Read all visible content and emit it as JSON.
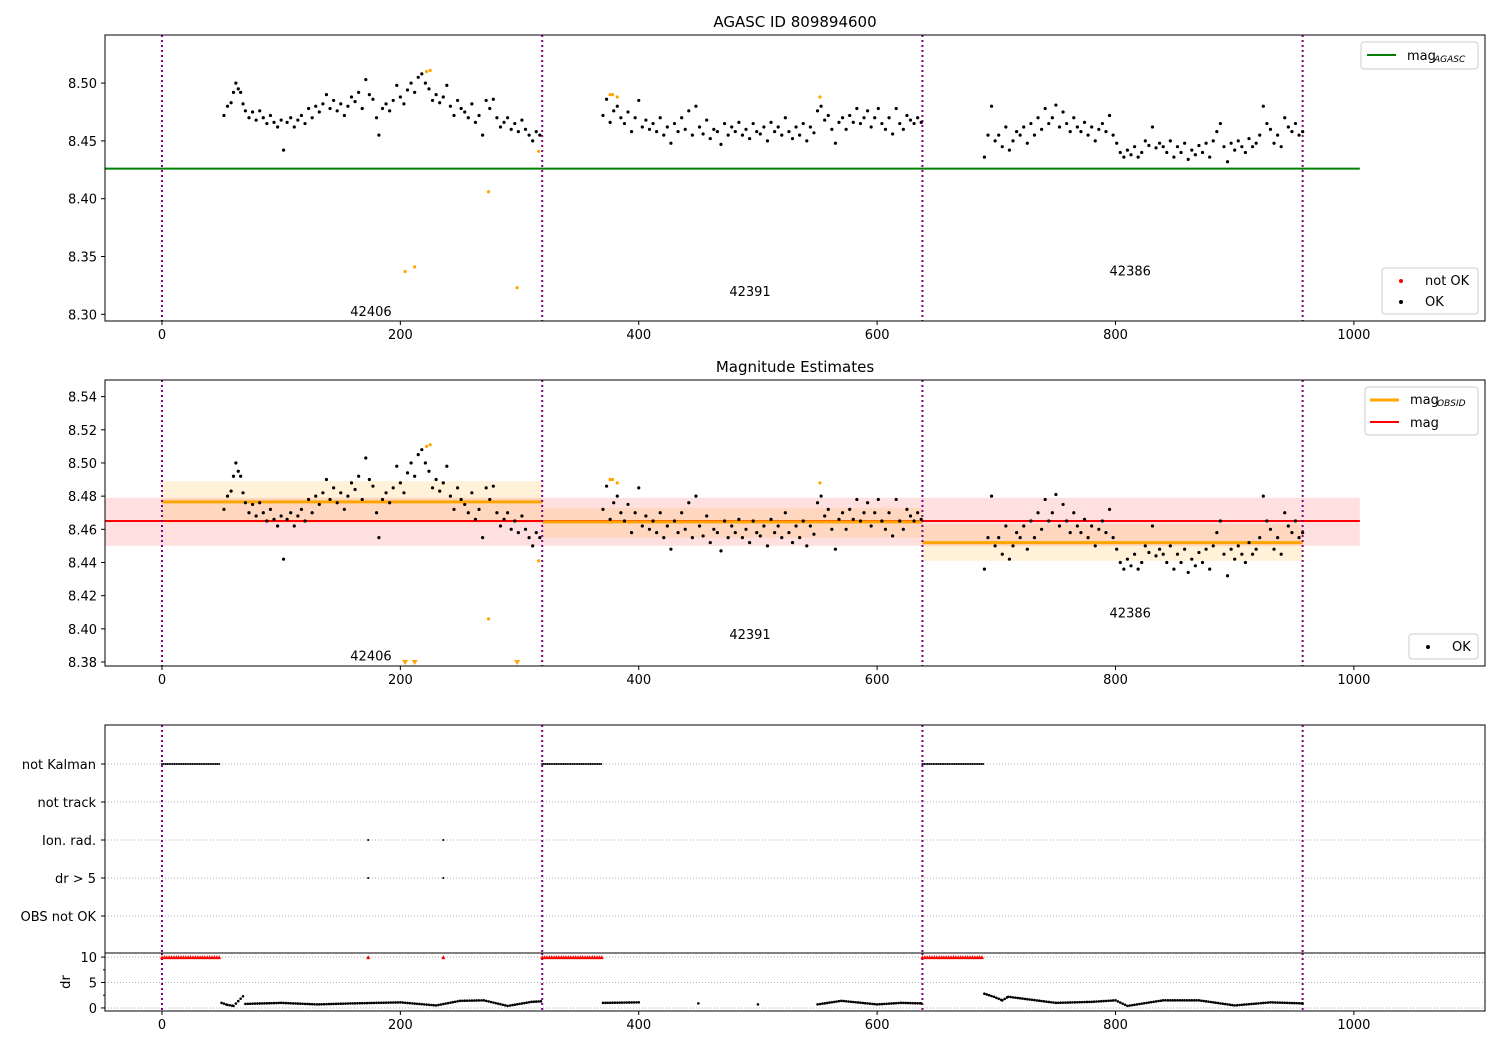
{
  "chart_data": {
    "type": "scatter",
    "title": "AGASC ID 809894600",
    "xlim": [
      -47.8,
      1110
    ],
    "xticks": [
      0,
      200,
      400,
      600,
      800,
      1000
    ],
    "obsid_boundaries": [
      0,
      319,
      638,
      957
    ],
    "obsids": [
      {
        "id": "42406",
        "label_x": 158,
        "label_y_top": 8.303,
        "label_y_mid": 8.384,
        "mag": 8.4765,
        "band": [
          8.464,
          8.489
        ],
        "x": [
          0,
          319
        ]
      },
      {
        "id": "42391",
        "label_x": 476,
        "label_y_top": 8.32,
        "label_y_mid": 8.397,
        "mag": 8.4645,
        "band": [
          8.455,
          8.473
        ],
        "x": [
          319,
          638
        ]
      },
      {
        "id": "42386",
        "label_x": 795,
        "label_y_top": 8.338,
        "label_y_mid": 8.41,
        "mag": 8.452,
        "band": [
          8.441,
          8.463
        ],
        "x": [
          638,
          957
        ]
      }
    ],
    "panels": [
      {
        "title": "AGASC ID 809894600",
        "ylim": [
          8.2942,
          8.5416
        ],
        "yticks": [
          "8.30",
          "8.35",
          "8.40",
          "8.45",
          "8.50"
        ],
        "mag_agasc": 8.426,
        "legend_top": {
          "label": "mag",
          "sub": "AGASC"
        },
        "legend_bottom": [
          "not OK",
          "OK"
        ]
      },
      {
        "title": "Magnitude Estimates",
        "ylim": [
          8.3776,
          8.55
        ],
        "yticks": [
          "8.38",
          "8.40",
          "8.42",
          "8.44",
          "8.46",
          "8.48",
          "8.50",
          "8.52",
          "8.54"
        ],
        "mag": 8.465,
        "mag_band": [
          8.45,
          8.479
        ],
        "legend_top": [
          {
            "label": "mag",
            "sub": "OBSID"
          },
          {
            "label": "mag",
            "sub": ""
          }
        ],
        "legend_bottom": [
          "OK"
        ]
      },
      {
        "categories": [
          "not Kalman",
          "not track",
          "Ion. rad.",
          "dr > 5",
          "OBS not OK"
        ],
        "flags": {
          "not Kalman": [
            [
              0,
              48
            ],
            [
              319,
              369
            ],
            [
              638,
              689
            ]
          ],
          "not track": [],
          "Ion. rad.": [
            [
              173,
              173
            ],
            [
              236,
              236
            ]
          ],
          "dr > 5": [
            [
              173,
              173
            ],
            [
              236,
              236
            ]
          ],
          "OBS not OK": []
        }
      },
      {
        "ylabel": "dr",
        "ylim": [
          -0.6,
          10.8
        ],
        "yticks": [
          "0",
          "5",
          "10"
        ],
        "dr_over_10": [
          [
            0,
            48
          ],
          [
            319,
            369
          ],
          [
            638,
            689
          ],
          [
            173,
            173
          ],
          [
            236,
            236
          ]
        ],
        "dr": [
          [
            50,
            1.0
          ],
          [
            55,
            0.6
          ],
          [
            60,
            0.4
          ],
          [
            68,
            2.3
          ],
          [
            70,
            0.8
          ],
          [
            100,
            1.0
          ],
          [
            130,
            0.7
          ],
          [
            160,
            0.9
          ],
          [
            200,
            1.1
          ],
          [
            230,
            0.5
          ],
          [
            250,
            1.4
          ],
          [
            270,
            1.5
          ],
          [
            290,
            0.4
          ],
          [
            310,
            1.2
          ],
          [
            318,
            1.3
          ],
          [
            370,
            1.0
          ],
          [
            400,
            1.1
          ],
          [
            450,
            0.9
          ],
          [
            500,
            0.7
          ],
          [
            550,
            0.7
          ],
          [
            570,
            1.4
          ],
          [
            600,
            0.7
          ],
          [
            620,
            1.0
          ],
          [
            637,
            0.9
          ],
          [
            690,
            2.8
          ],
          [
            698,
            2.2
          ],
          [
            705,
            1.5
          ],
          [
            710,
            2.2
          ],
          [
            750,
            1.0
          ],
          [
            780,
            1.2
          ],
          [
            800,
            1.5
          ],
          [
            810,
            0.4
          ],
          [
            840,
            1.5
          ],
          [
            870,
            1.5
          ],
          [
            900,
            0.5
          ],
          [
            930,
            1.1
          ],
          [
            957,
            0.9
          ]
        ]
      }
    ],
    "not_ok": [
      [
        204,
        8.337
      ],
      [
        212,
        8.341
      ],
      [
        222,
        8.51
      ],
      [
        225,
        8.511
      ],
      [
        274,
        8.406
      ],
      [
        298,
        8.323
      ],
      [
        316,
        8.441
      ],
      [
        376,
        8.49
      ],
      [
        378,
        8.49
      ],
      [
        382,
        8.488
      ],
      [
        552,
        8.488
      ]
    ],
    "ok": [
      [
        52,
        8.472
      ],
      [
        55,
        8.48
      ],
      [
        58,
        8.483
      ],
      [
        60,
        8.492
      ],
      [
        62,
        8.5
      ],
      [
        64,
        8.495
      ],
      [
        66,
        8.492
      ],
      [
        68,
        8.482
      ],
      [
        70,
        8.476
      ],
      [
        73,
        8.47
      ],
      [
        76,
        8.475
      ],
      [
        79,
        8.468
      ],
      [
        82,
        8.476
      ],
      [
        85,
        8.47
      ],
      [
        88,
        8.465
      ],
      [
        91,
        8.472
      ],
      [
        94,
        8.466
      ],
      [
        97,
        8.462
      ],
      [
        100,
        8.468
      ],
      [
        102,
        8.442
      ],
      [
        105,
        8.466
      ],
      [
        108,
        8.47
      ],
      [
        111,
        8.462
      ],
      [
        114,
        8.468
      ],
      [
        117,
        8.472
      ],
      [
        120,
        8.465
      ],
      [
        123,
        8.478
      ],
      [
        126,
        8.47
      ],
      [
        129,
        8.48
      ],
      [
        132,
        8.475
      ],
      [
        135,
        8.482
      ],
      [
        138,
        8.49
      ],
      [
        141,
        8.478
      ],
      [
        144,
        8.485
      ],
      [
        147,
        8.476
      ],
      [
        150,
        8.482
      ],
      [
        153,
        8.472
      ],
      [
        156,
        8.48
      ],
      [
        159,
        8.488
      ],
      [
        162,
        8.484
      ],
      [
        165,
        8.492
      ],
      [
        168,
        8.478
      ],
      [
        171,
        8.503
      ],
      [
        174,
        8.49
      ],
      [
        177,
        8.486
      ],
      [
        180,
        8.47
      ],
      [
        182,
        8.455
      ],
      [
        185,
        8.478
      ],
      [
        188,
        8.482
      ],
      [
        191,
        8.476
      ],
      [
        194,
        8.485
      ],
      [
        197,
        8.498
      ],
      [
        200,
        8.488
      ],
      [
        203,
        8.482
      ],
      [
        206,
        8.494
      ],
      [
        209,
        8.5
      ],
      [
        212,
        8.492
      ],
      [
        215,
        8.505
      ],
      [
        218,
        8.508
      ],
      [
        221,
        8.5
      ],
      [
        224,
        8.495
      ],
      [
        227,
        8.485
      ],
      [
        230,
        8.49
      ],
      [
        233,
        8.483
      ],
      [
        236,
        8.488
      ],
      [
        239,
        8.498
      ],
      [
        242,
        8.48
      ],
      [
        245,
        8.472
      ],
      [
        248,
        8.485
      ],
      [
        251,
        8.478
      ],
      [
        254,
        8.475
      ],
      [
        257,
        8.47
      ],
      [
        260,
        8.482
      ],
      [
        263,
        8.466
      ],
      [
        266,
        8.472
      ],
      [
        269,
        8.455
      ],
      [
        272,
        8.485
      ],
      [
        275,
        8.478
      ],
      [
        278,
        8.486
      ],
      [
        281,
        8.47
      ],
      [
        284,
        8.462
      ],
      [
        287,
        8.466
      ],
      [
        290,
        8.47
      ],
      [
        293,
        8.46
      ],
      [
        296,
        8.465
      ],
      [
        299,
        8.458
      ],
      [
        302,
        8.468
      ],
      [
        305,
        8.46
      ],
      [
        308,
        8.455
      ],
      [
        311,
        8.45
      ],
      [
        314,
        8.458
      ],
      [
        317,
        8.455
      ],
      [
        370,
        8.472
      ],
      [
        373,
        8.486
      ],
      [
        376,
        8.466
      ],
      [
        379,
        8.476
      ],
      [
        382,
        8.48
      ],
      [
        385,
        8.47
      ],
      [
        388,
        8.465
      ],
      [
        391,
        8.475
      ],
      [
        394,
        8.458
      ],
      [
        397,
        8.47
      ],
      [
        400,
        8.485
      ],
      [
        403,
        8.462
      ],
      [
        406,
        8.468
      ],
      [
        409,
        8.46
      ],
      [
        412,
        8.465
      ],
      [
        415,
        8.458
      ],
      [
        418,
        8.47
      ],
      [
        421,
        8.455
      ],
      [
        424,
        8.462
      ],
      [
        427,
        8.448
      ],
      [
        430,
        8.465
      ],
      [
        433,
        8.458
      ],
      [
        436,
        8.47
      ],
      [
        439,
        8.46
      ],
      [
        442,
        8.476
      ],
      [
        445,
        8.455
      ],
      [
        448,
        8.48
      ],
      [
        451,
        8.462
      ],
      [
        454,
        8.456
      ],
      [
        457,
        8.468
      ],
      [
        460,
        8.452
      ],
      [
        463,
        8.46
      ],
      [
        466,
        8.458
      ],
      [
        469,
        8.447
      ],
      [
        472,
        8.465
      ],
      [
        475,
        8.455
      ],
      [
        478,
        8.462
      ],
      [
        481,
        8.458
      ],
      [
        484,
        8.466
      ],
      [
        487,
        8.455
      ],
      [
        490,
        8.46
      ],
      [
        493,
        8.452
      ],
      [
        496,
        8.465
      ],
      [
        499,
        8.458
      ],
      [
        502,
        8.456
      ],
      [
        505,
        8.462
      ],
      [
        508,
        8.45
      ],
      [
        511,
        8.466
      ],
      [
        514,
        8.458
      ],
      [
        517,
        8.462
      ],
      [
        520,
        8.455
      ],
      [
        523,
        8.47
      ],
      [
        526,
        8.458
      ],
      [
        529,
        8.452
      ],
      [
        532,
        8.462
      ],
      [
        535,
        8.455
      ],
      [
        538,
        8.465
      ],
      [
        541,
        8.45
      ],
      [
        544,
        8.462
      ],
      [
        547,
        8.457
      ],
      [
        550,
        8.476
      ],
      [
        553,
        8.48
      ],
      [
        556,
        8.468
      ],
      [
        559,
        8.472
      ],
      [
        562,
        8.46
      ],
      [
        565,
        8.448
      ],
      [
        568,
        8.466
      ],
      [
        571,
        8.47
      ],
      [
        574,
        8.46
      ],
      [
        577,
        8.472
      ],
      [
        580,
        8.466
      ],
      [
        583,
        8.478
      ],
      [
        586,
        8.465
      ],
      [
        589,
        8.47
      ],
      [
        592,
        8.476
      ],
      [
        595,
        8.462
      ],
      [
        598,
        8.47
      ],
      [
        601,
        8.478
      ],
      [
        604,
        8.465
      ],
      [
        607,
        8.46
      ],
      [
        610,
        8.47
      ],
      [
        613,
        8.456
      ],
      [
        616,
        8.478
      ],
      [
        619,
        8.465
      ],
      [
        622,
        8.46
      ],
      [
        625,
        8.472
      ],
      [
        628,
        8.468
      ],
      [
        631,
        8.465
      ],
      [
        634,
        8.47
      ],
      [
        637,
        8.466
      ],
      [
        690,
        8.436
      ],
      [
        693,
        8.455
      ],
      [
        696,
        8.48
      ],
      [
        699,
        8.45
      ],
      [
        702,
        8.455
      ],
      [
        705,
        8.445
      ],
      [
        708,
        8.462
      ],
      [
        711,
        8.442
      ],
      [
        714,
        8.45
      ],
      [
        717,
        8.458
      ],
      [
        720,
        8.455
      ],
      [
        723,
        8.462
      ],
      [
        726,
        8.448
      ],
      [
        729,
        8.465
      ],
      [
        732,
        8.455
      ],
      [
        735,
        8.47
      ],
      [
        738,
        8.46
      ],
      [
        741,
        8.478
      ],
      [
        744,
        8.465
      ],
      [
        747,
        8.47
      ],
      [
        750,
        8.481
      ],
      [
        753,
        8.462
      ],
      [
        756,
        8.475
      ],
      [
        759,
        8.465
      ],
      [
        762,
        8.458
      ],
      [
        765,
        8.47
      ],
      [
        768,
        8.462
      ],
      [
        771,
        8.458
      ],
      [
        774,
        8.466
      ],
      [
        777,
        8.455
      ],
      [
        780,
        8.462
      ],
      [
        783,
        8.45
      ],
      [
        786,
        8.46
      ],
      [
        789,
        8.465
      ],
      [
        792,
        8.458
      ],
      [
        795,
        8.472
      ],
      [
        798,
        8.455
      ],
      [
        801,
        8.448
      ],
      [
        804,
        8.44
      ],
      [
        807,
        8.436
      ],
      [
        810,
        8.442
      ],
      [
        813,
        8.438
      ],
      [
        816,
        8.445
      ],
      [
        819,
        8.436
      ],
      [
        822,
        8.44
      ],
      [
        825,
        8.45
      ],
      [
        828,
        8.446
      ],
      [
        831,
        8.462
      ],
      [
        834,
        8.444
      ],
      [
        837,
        8.448
      ],
      [
        840,
        8.445
      ],
      [
        843,
        8.44
      ],
      [
        846,
        8.45
      ],
      [
        849,
        8.436
      ],
      [
        852,
        8.445
      ],
      [
        855,
        8.44
      ],
      [
        858,
        8.448
      ],
      [
        861,
        8.434
      ],
      [
        864,
        8.442
      ],
      [
        867,
        8.438
      ],
      [
        870,
        8.446
      ],
      [
        873,
        8.44
      ],
      [
        876,
        8.448
      ],
      [
        879,
        8.436
      ],
      [
        882,
        8.45
      ],
      [
        885,
        8.458
      ],
      [
        888,
        8.465
      ],
      [
        891,
        8.445
      ],
      [
        894,
        8.432
      ],
      [
        897,
        8.448
      ],
      [
        900,
        8.442
      ],
      [
        903,
        8.45
      ],
      [
        906,
        8.445
      ],
      [
        909,
        8.44
      ],
      [
        912,
        8.452
      ],
      [
        915,
        8.445
      ],
      [
        918,
        8.448
      ],
      [
        921,
        8.455
      ],
      [
        924,
        8.48
      ],
      [
        927,
        8.465
      ],
      [
        930,
        8.46
      ],
      [
        933,
        8.448
      ],
      [
        936,
        8.455
      ],
      [
        939,
        8.445
      ],
      [
        942,
        8.47
      ],
      [
        945,
        8.462
      ],
      [
        948,
        8.458
      ],
      [
        951,
        8.465
      ],
      [
        954,
        8.455
      ],
      [
        957,
        8.458
      ]
    ],
    "colors": {
      "agasc": "#008000",
      "obsid": "#ffa500",
      "mag": "#ff0000",
      "boundary": "#800080",
      "ok": "#000000",
      "not_ok": "#ffa500"
    }
  }
}
